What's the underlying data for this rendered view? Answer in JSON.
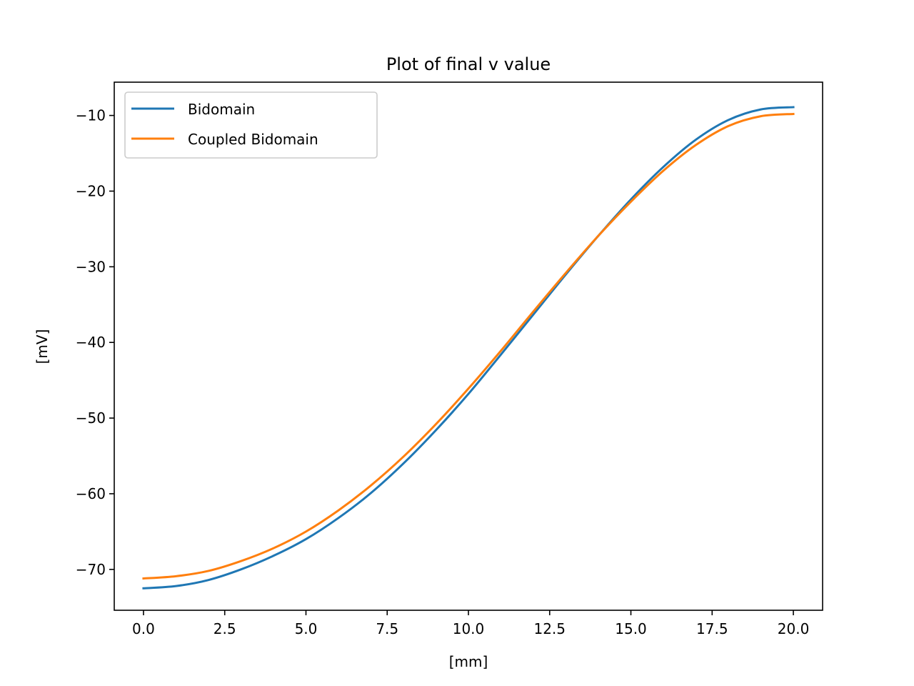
{
  "chart_data": {
    "type": "line",
    "title": "Plot of final v value",
    "xlabel": "[mm]",
    "ylabel": "[mV]",
    "xlim": [
      -0.9,
      20.9
    ],
    "ylim": [
      -75.4,
      -5.6
    ],
    "xticks": [
      0.0,
      2.5,
      5.0,
      7.5,
      10.0,
      12.5,
      15.0,
      17.5,
      20.0
    ],
    "xtick_labels": [
      "0.0",
      "2.5",
      "5.0",
      "7.5",
      "10.0",
      "12.5",
      "15.0",
      "17.5",
      "20.0"
    ],
    "yticks": [
      -70,
      -60,
      -50,
      -40,
      -30,
      -20,
      -10
    ],
    "ytick_labels": [
      "−70",
      "−60",
      "−50",
      "−40",
      "−30",
      "−20",
      "−10"
    ],
    "grid": false,
    "legend_position": "top-left",
    "x": [
      0,
      1,
      2,
      3,
      4,
      5,
      6,
      7,
      8,
      9,
      10,
      11,
      12,
      13,
      14,
      15,
      16,
      17,
      18,
      19,
      20
    ],
    "series": [
      {
        "name": "Bidomain",
        "color": "#1f77b4",
        "values": [
          -72.5,
          -72.2,
          -71.4,
          -70.0,
          -68.2,
          -66.0,
          -63.2,
          -59.9,
          -56.0,
          -51.6,
          -46.8,
          -41.6,
          -36.3,
          -31.0,
          -25.9,
          -21.1,
          -16.8,
          -13.2,
          -10.6,
          -9.2,
          -8.9
        ]
      },
      {
        "name": "Coupled Bidomain",
        "color": "#ff7f0e",
        "values": [
          -71.2,
          -70.9,
          -70.2,
          -68.9,
          -67.2,
          -65.0,
          -62.2,
          -58.9,
          -55.1,
          -50.8,
          -46.1,
          -41.1,
          -35.9,
          -30.8,
          -25.9,
          -21.4,
          -17.3,
          -13.9,
          -11.4,
          -10.1,
          -9.8
        ]
      }
    ]
  }
}
